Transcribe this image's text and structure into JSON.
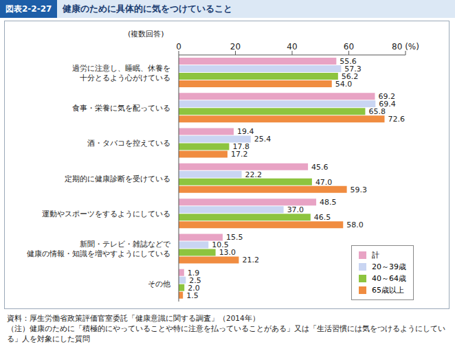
{
  "chart_data": {
    "type": "bar",
    "title": "健康のために具体的に気をつけていること",
    "orientation": "horizontal",
    "data_labels": true,
    "grid": false,
    "legend": "lower right",
    "annotations": [
      "図表2-2-27",
      "(複数回答)",
      "資料：厚生労働省政策評価官室委託「健康意識に関する調査」（2014年）",
      "（注）健康のために「積極的にやっていることや特に注意を払っていることがある」又は「生活習慣には気をつけるようにしている」人を対象にした質問"
    ],
    "categories": [
      "過労に注意し、睡眠、休養を\n十分とるよう心がけている",
      "食事・栄養に気を配っている",
      "酒・タバコを控えている",
      "定期的に健康診断を受けている",
      "運動やスポーツをするようにしている",
      "新聞・テレビ・雑誌などで\n健康の情報・知識を増やすようにしている",
      "その他"
    ],
    "xlim": [
      0,
      80
    ],
    "xticks": [
      0,
      20,
      40,
      60,
      {
        "value": 80,
        "label": "80 (%)"
      }
    ],
    "series": [
      {
        "name": "計",
        "color": "#e8a3c4",
        "values": [
          55.6,
          69.2,
          19.4,
          45.6,
          48.5,
          15.5,
          1.9
        ],
        "value_labels": [
          "55.6",
          "69.2",
          "19.4",
          "45.6",
          "48.5",
          "15.5",
          "1.9"
        ]
      },
      {
        "name": "20～39歳",
        "color": "#c9d5f2",
        "values": [
          57.3,
          69.4,
          25.4,
          22.2,
          37.0,
          10.5,
          2.5
        ],
        "value_labels": [
          "57.3",
          "69.4",
          "25.4",
          "22.2",
          "37.0",
          "10.5",
          "2.5"
        ]
      },
      {
        "name": "40～64歳",
        "color": "#8dc43f",
        "values": [
          56.2,
          65.8,
          17.8,
          47.0,
          46.5,
          13.0,
          2.0
        ],
        "value_labels": [
          "56.2",
          "65.8",
          "17.8",
          "47.0",
          "46.5",
          "13.0",
          "2.0"
        ]
      },
      {
        "name": "65歳以上",
        "color": "#f08c40",
        "values": [
          54.0,
          72.6,
          17.2,
          59.3,
          58.0,
          21.2,
          1.5
        ],
        "value_labels": [
          "54.0",
          "72.6",
          "17.2",
          "59.3",
          "58.0",
          "21.2",
          "1.5"
        ]
      }
    ]
  }
}
